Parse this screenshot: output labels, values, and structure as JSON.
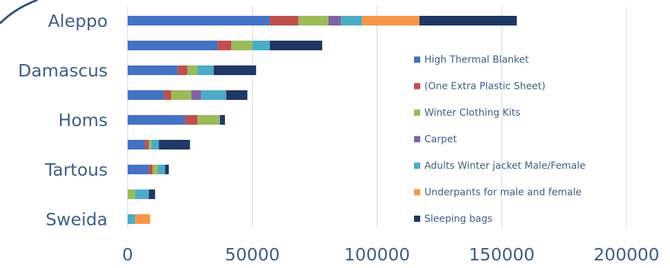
{
  "chart_data": {
    "type": "bar",
    "orientation": "horizontal",
    "stacked": true,
    "categories": [
      "Aleppo",
      "",
      "Damascus",
      "",
      "Homs",
      "",
      "Tartous",
      "",
      "Sweida"
    ],
    "series": [
      {
        "name": "High Thermal Blanket",
        "color": "#4472c4",
        "values": [
          57000,
          36000,
          20000,
          14500,
          23000,
          7000,
          8500,
          0,
          0
        ]
      },
      {
        "name": "(One Extra Plastic Sheet)",
        "color": "#c0504d",
        "values": [
          11500,
          5500,
          4000,
          3000,
          5000,
          1500,
          1500,
          0,
          0
        ]
      },
      {
        "name": "Winter Clothing Kits",
        "color": "#9bbb59",
        "values": [
          12000,
          8500,
          4000,
          8000,
          9000,
          1000,
          2000,
          3000,
          0
        ]
      },
      {
        "name": "Carpet",
        "color": "#8064a2",
        "values": [
          5000,
          0,
          0,
          4000,
          0,
          0,
          0,
          0,
          0
        ]
      },
      {
        "name": "Adults Winter jacket Male/Female",
        "color": "#4bacc6",
        "values": [
          8500,
          7000,
          6500,
          10000,
          0,
          3000,
          3000,
          5500,
          3000
        ]
      },
      {
        "name": "Underpants for male and female",
        "color": "#f79646",
        "values": [
          23000,
          0,
          0,
          0,
          0,
          0,
          0,
          0,
          6000
        ]
      },
      {
        "name": "Sleeping bags",
        "color": "#1f3864",
        "values": [
          39000,
          21000,
          17000,
          8500,
          2000,
          12500,
          1500,
          2500,
          0
        ]
      }
    ],
    "xlim": [
      0,
      200000
    ],
    "xticks": [
      "0",
      "50000",
      "100000",
      "150000",
      "200000"
    ],
    "grid": "vertical",
    "legend": "right"
  }
}
